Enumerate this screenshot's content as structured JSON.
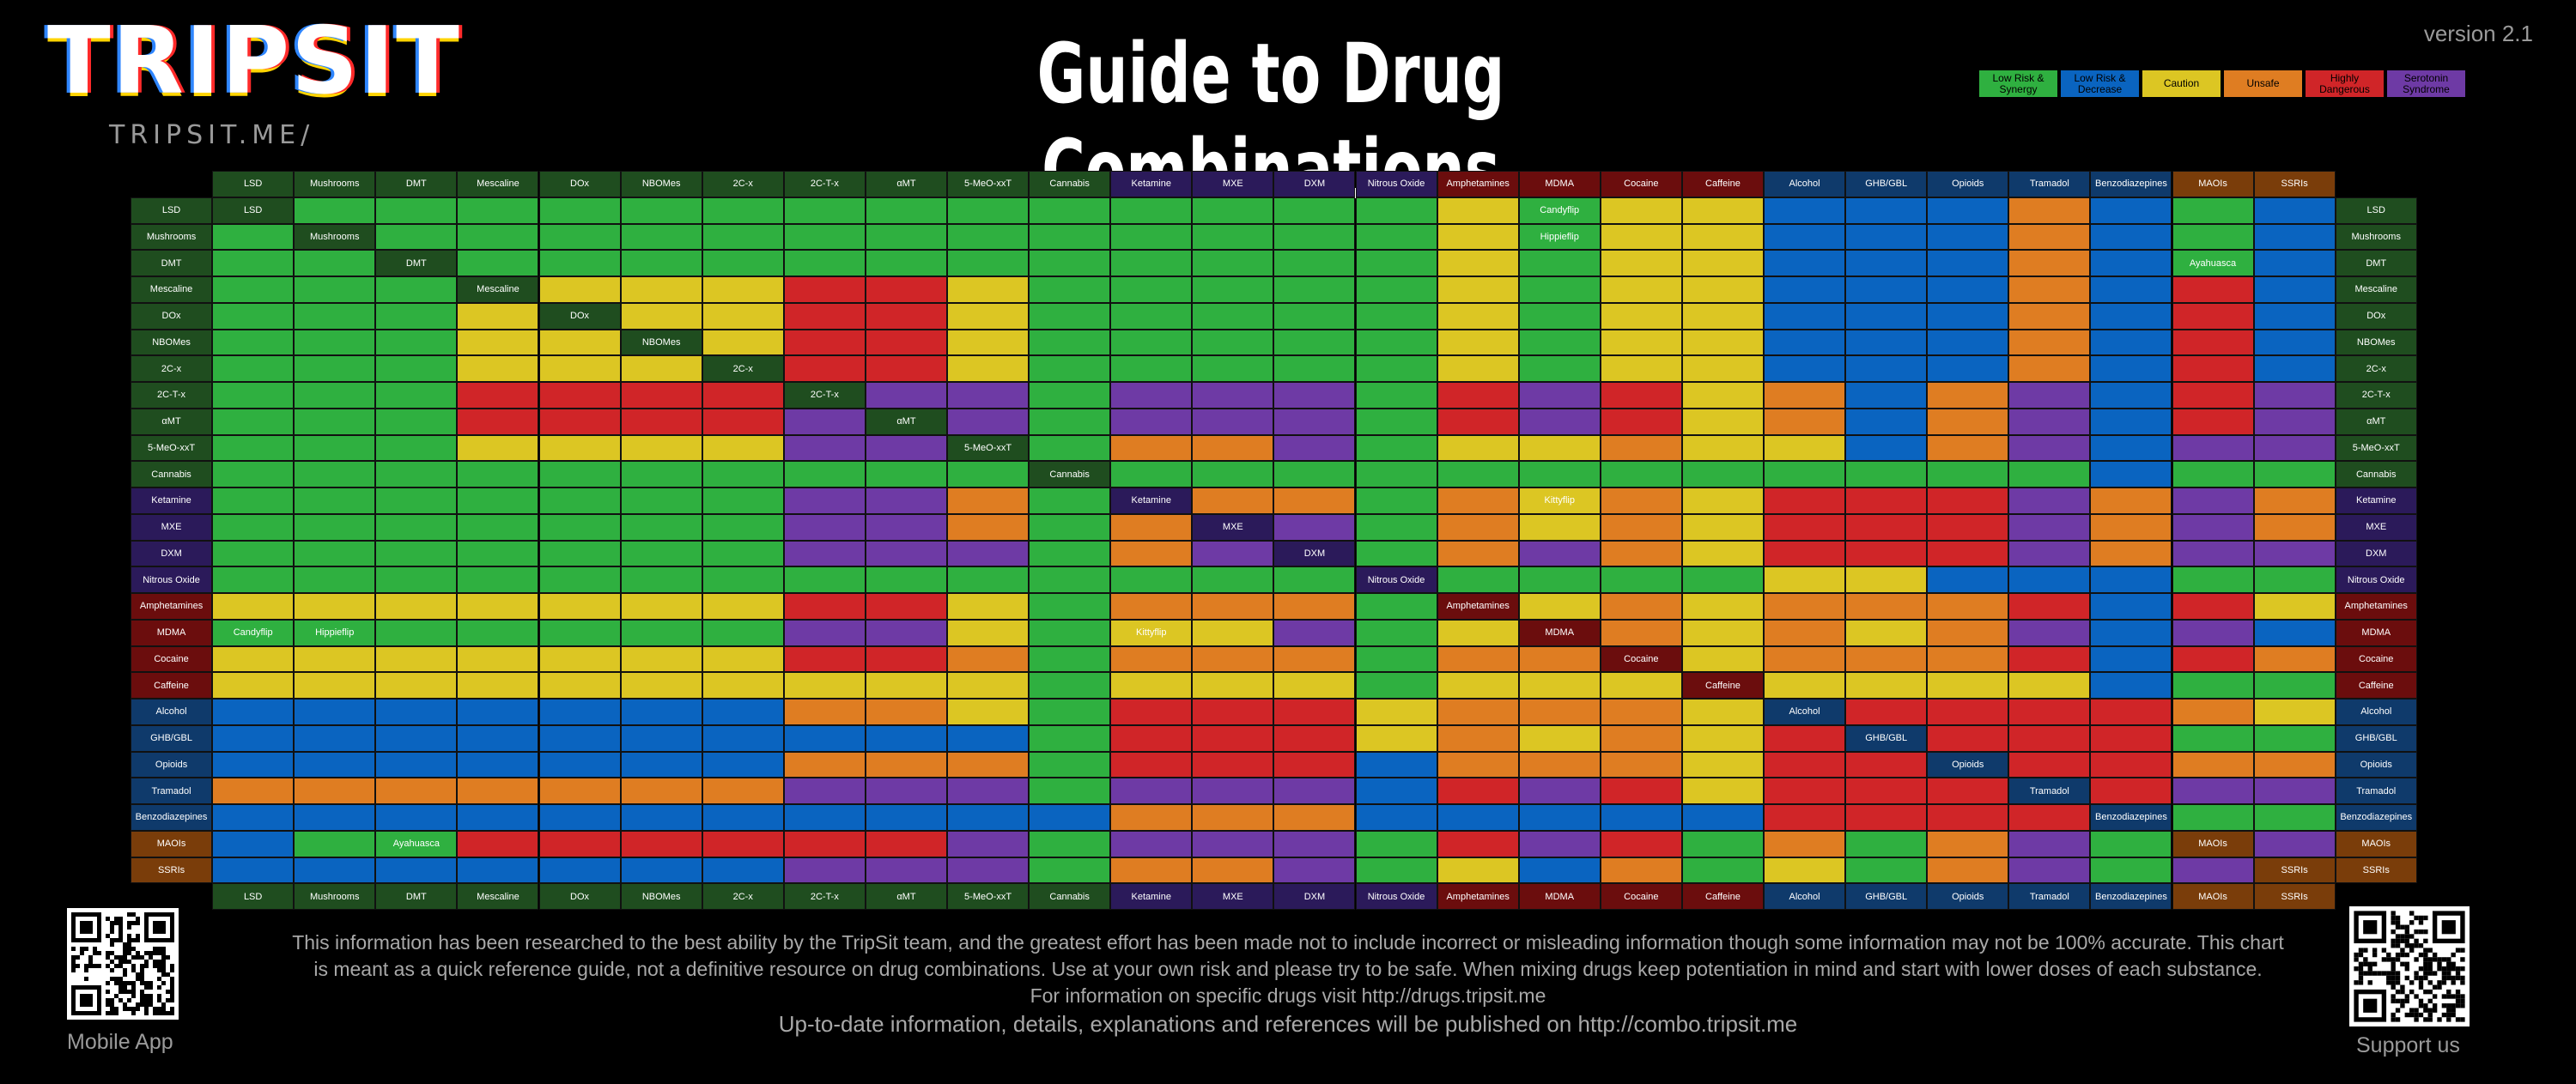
{
  "version": "version 2.1",
  "logo": {
    "text": "TRIPSIT",
    "subtext": "TRIPSIT.ME/"
  },
  "title": "Guide to Drug Combinations",
  "legend": [
    {
      "code": 1,
      "label": "Low Risk & Synergy",
      "color": "#2fb040"
    },
    {
      "code": 2,
      "label": "Low Risk & Decrease",
      "color": "#0a64c0"
    },
    {
      "code": 3,
      "label": "Caution",
      "color": "#dcc623"
    },
    {
      "code": 4,
      "label": "Unsafe",
      "color": "#df7d22"
    },
    {
      "code": 5,
      "label": "Highly Dangerous",
      "color": "#d02528"
    },
    {
      "code": 6,
      "label": "Serotonin Syndrome",
      "color": "#6e3aa5"
    }
  ],
  "chart_data": {
    "type": "table",
    "title": "Guide to Drug Combinations",
    "drugs": [
      "LSD",
      "Mushrooms",
      "DMT",
      "Mescaline",
      "DOx",
      "NBOMes",
      "2C-x",
      "2C-T-x",
      "αMT",
      "5-MeO-xxT",
      "Cannabis",
      "Ketamine",
      "MXE",
      "DXM",
      "Nitrous Oxide",
      "Amphetamines",
      "MDMA",
      "Cocaine",
      "Caffeine",
      "Alcohol",
      "GHB/GBL",
      "Opioids",
      "Tramadol",
      "Benzodiazepines",
      "MAOIs",
      "SSRIs"
    ],
    "header_colors": [
      "#1f4d1f",
      "#1f4d1f",
      "#1f4d1f",
      "#1f4d1f",
      "#1f4d1f",
      "#1f4d1f",
      "#1f4d1f",
      "#1f4d1f",
      "#1f4d1f",
      "#1f4d1f",
      "#1f4d1f",
      "#2b1a5a",
      "#2b1a5a",
      "#2b1a5a",
      "#2b1a5a",
      "#6b0d0d",
      "#6b0d0d",
      "#6b0d0d",
      "#6b0d0d",
      "#0f3a6b",
      "#0f3a6b",
      "#0f3a6b",
      "#0f3a6b",
      "#0f3a6b",
      "#7a3d0a",
      "#7a3d0a"
    ],
    "legend_codes": {
      "1": "Low Risk & Synergy",
      "2": "Low Risk & Decrease",
      "3": "Caution",
      "4": "Unsafe",
      "5": "Highly Dangerous",
      "6": "Serotonin Syndrome"
    },
    "matrix": [
      [
        0,
        1,
        1,
        1,
        1,
        1,
        1,
        1,
        1,
        1,
        1,
        1,
        1,
        1,
        1,
        3,
        1,
        3,
        3,
        2,
        2,
        2,
        4,
        2,
        1,
        2
      ],
      [
        1,
        0,
        1,
        1,
        1,
        1,
        1,
        1,
        1,
        1,
        1,
        1,
        1,
        1,
        1,
        3,
        1,
        3,
        3,
        2,
        2,
        2,
        4,
        2,
        1,
        2
      ],
      [
        1,
        1,
        0,
        1,
        1,
        1,
        1,
        1,
        1,
        1,
        1,
        1,
        1,
        1,
        1,
        3,
        1,
        3,
        3,
        2,
        2,
        2,
        4,
        2,
        1,
        2
      ],
      [
        1,
        1,
        1,
        0,
        3,
        3,
        3,
        5,
        5,
        3,
        1,
        1,
        1,
        1,
        1,
        3,
        1,
        3,
        3,
        2,
        2,
        2,
        4,
        2,
        5,
        2
      ],
      [
        1,
        1,
        1,
        3,
        0,
        3,
        3,
        5,
        5,
        3,
        1,
        1,
        1,
        1,
        1,
        3,
        1,
        3,
        3,
        2,
        2,
        2,
        4,
        2,
        5,
        2
      ],
      [
        1,
        1,
        1,
        3,
        3,
        0,
        3,
        5,
        5,
        3,
        1,
        1,
        1,
        1,
        1,
        3,
        1,
        3,
        3,
        2,
        2,
        2,
        4,
        2,
        5,
        2
      ],
      [
        1,
        1,
        1,
        3,
        3,
        3,
        0,
        5,
        5,
        3,
        1,
        1,
        1,
        1,
        1,
        3,
        1,
        3,
        3,
        2,
        2,
        2,
        4,
        2,
        5,
        2
      ],
      [
        1,
        1,
        1,
        5,
        5,
        5,
        5,
        0,
        6,
        6,
        1,
        6,
        6,
        6,
        1,
        5,
        6,
        5,
        3,
        4,
        2,
        4,
        6,
        2,
        5,
        6
      ],
      [
        1,
        1,
        1,
        5,
        5,
        5,
        5,
        6,
        0,
        6,
        1,
        6,
        6,
        6,
        1,
        5,
        6,
        5,
        3,
        4,
        2,
        4,
        6,
        2,
        5,
        6
      ],
      [
        1,
        1,
        1,
        3,
        3,
        3,
        3,
        6,
        6,
        0,
        1,
        4,
        4,
        6,
        1,
        3,
        3,
        4,
        3,
        3,
        2,
        4,
        6,
        2,
        6,
        6
      ],
      [
        1,
        1,
        1,
        1,
        1,
        1,
        1,
        1,
        1,
        1,
        0,
        1,
        1,
        1,
        1,
        1,
        1,
        1,
        1,
        1,
        1,
        1,
        1,
        2,
        1,
        1
      ],
      [
        1,
        1,
        1,
        1,
        1,
        1,
        1,
        6,
        6,
        4,
        1,
        0,
        4,
        4,
        1,
        4,
        3,
        4,
        3,
        5,
        5,
        5,
        6,
        4,
        6,
        4
      ],
      [
        1,
        1,
        1,
        1,
        1,
        1,
        1,
        6,
        6,
        4,
        1,
        4,
        0,
        6,
        1,
        4,
        3,
        4,
        3,
        5,
        5,
        5,
        6,
        4,
        6,
        4
      ],
      [
        1,
        1,
        1,
        1,
        1,
        1,
        1,
        6,
        6,
        6,
        1,
        4,
        6,
        0,
        1,
        4,
        6,
        4,
        3,
        5,
        5,
        5,
        6,
        4,
        6,
        6
      ],
      [
        1,
        1,
        1,
        1,
        1,
        1,
        1,
        1,
        1,
        1,
        1,
        1,
        1,
        1,
        0,
        1,
        1,
        1,
        1,
        3,
        3,
        2,
        2,
        2,
        1,
        1
      ],
      [
        3,
        3,
        3,
        3,
        3,
        3,
        3,
        5,
        5,
        3,
        1,
        4,
        4,
        4,
        1,
        0,
        3,
        4,
        3,
        4,
        4,
        4,
        5,
        2,
        5,
        3
      ],
      [
        1,
        1,
        1,
        1,
        1,
        1,
        1,
        6,
        6,
        3,
        1,
        3,
        3,
        6,
        1,
        3,
        0,
        4,
        3,
        4,
        3,
        4,
        6,
        2,
        6,
        2
      ],
      [
        3,
        3,
        3,
        3,
        3,
        3,
        3,
        5,
        5,
        4,
        1,
        4,
        4,
        4,
        1,
        4,
        4,
        0,
        3,
        4,
        4,
        4,
        5,
        2,
        5,
        4
      ],
      [
        3,
        3,
        3,
        3,
        3,
        3,
        3,
        3,
        3,
        3,
        1,
        3,
        3,
        3,
        1,
        3,
        3,
        3,
        0,
        3,
        3,
        3,
        3,
        2,
        1,
        1
      ],
      [
        2,
        2,
        2,
        2,
        2,
        2,
        2,
        4,
        4,
        3,
        1,
        5,
        5,
        5,
        3,
        4,
        4,
        4,
        3,
        0,
        5,
        5,
        5,
        5,
        4,
        3
      ],
      [
        2,
        2,
        2,
        2,
        2,
        2,
        2,
        2,
        2,
        2,
        1,
        5,
        5,
        5,
        3,
        4,
        3,
        4,
        3,
        5,
        0,
        5,
        5,
        5,
        1,
        1
      ],
      [
        2,
        2,
        2,
        2,
        2,
        2,
        2,
        4,
        4,
        4,
        1,
        5,
        5,
        5,
        2,
        4,
        4,
        4,
        3,
        5,
        5,
        0,
        5,
        5,
        4,
        4
      ],
      [
        4,
        4,
        4,
        4,
        4,
        4,
        4,
        6,
        6,
        6,
        1,
        6,
        6,
        6,
        2,
        5,
        6,
        5,
        3,
        5,
        5,
        5,
        0,
        5,
        6,
        6
      ],
      [
        2,
        2,
        2,
        2,
        2,
        2,
        2,
        2,
        2,
        2,
        2,
        4,
        4,
        4,
        2,
        2,
        2,
        2,
        2,
        5,
        5,
        5,
        5,
        0,
        1,
        1
      ],
      [
        2,
        1,
        1,
        5,
        5,
        5,
        5,
        5,
        5,
        6,
        1,
        6,
        6,
        6,
        1,
        5,
        6,
        5,
        1,
        4,
        1,
        4,
        6,
        1,
        0,
        6
      ],
      [
        2,
        2,
        2,
        2,
        2,
        2,
        2,
        6,
        6,
        6,
        1,
        4,
        4,
        6,
        1,
        3,
        2,
        4,
        1,
        3,
        1,
        4,
        6,
        1,
        6,
        0
      ]
    ],
    "annotations": [
      {
        "row": 0,
        "col": 16,
        "text": "Candyflip"
      },
      {
        "row": 1,
        "col": 16,
        "text": "Hippieflip"
      },
      {
        "row": 2,
        "col": 24,
        "text": "Ayahuasca"
      },
      {
        "row": 11,
        "col": 16,
        "text": "Kittyflip"
      },
      {
        "row": 16,
        "col": 0,
        "text": "Candyflip"
      },
      {
        "row": 16,
        "col": 1,
        "text": "Hippieflip"
      },
      {
        "row": 16,
        "col": 11,
        "text": "Kittyflip"
      },
      {
        "row": 24,
        "col": 2,
        "text": "Ayahuasca"
      }
    ]
  },
  "footer": {
    "disclaimer": [
      "This information has been researched to the best ability by the TripSit team, and the greatest effort has been made not to include incorrect or misleading information though some information may not be 100% accurate. This chart",
      "is meant as a quick reference guide, not a definitive resource on drug combinations. Use at your own risk and please try to be safe. When mixing drugs keep potentiation in mind and start with lower doses of each substance.",
      "For information on specific drugs visit http://drugs.tripsit.me"
    ],
    "updates": "Up-to-date information, details, explanations and references will be published on http://combo.tripsit.me",
    "mobile_label": "Mobile App",
    "support_label": "Support us"
  }
}
